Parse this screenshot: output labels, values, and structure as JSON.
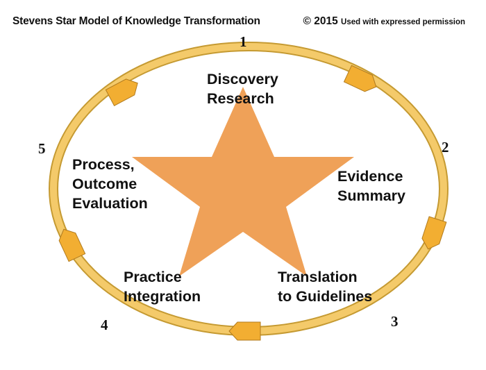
{
  "header": {
    "title": "Stevens Star Model of Knowledge Transformation",
    "copyright_main": "© 2015",
    "copyright_note": "Used with expressed permission"
  },
  "numbers": [
    "1",
    "2",
    "3",
    "4",
    "5"
  ],
  "labels": {
    "discovery": [
      "Discovery",
      "Research"
    ],
    "evidence": [
      "Evidence",
      "Summary"
    ],
    "translation": [
      "Translation",
      "to Guidelines"
    ],
    "practice": [
      "Practice",
      "Integration"
    ],
    "evaluation": [
      "Process,",
      "Outcome",
      "Evaluation"
    ]
  },
  "colors": {
    "ring": "#F4CA6A",
    "ring_edge": "#C59A32",
    "arrow_fill": "#F2AE32",
    "arrow_edge": "#B07A1E",
    "star": "#EFA158"
  }
}
